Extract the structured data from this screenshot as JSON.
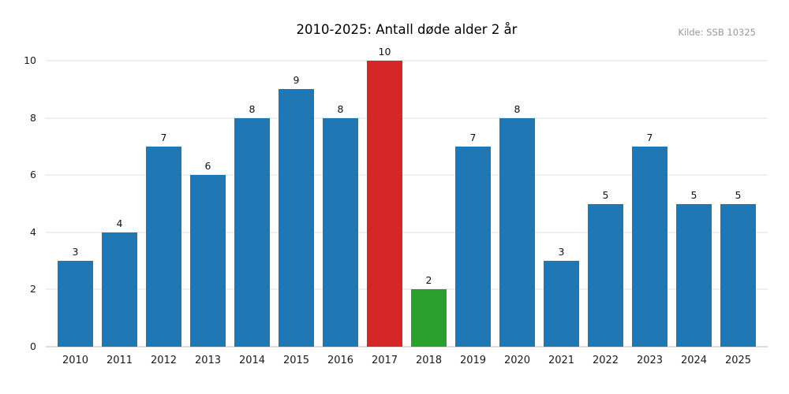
{
  "header": {
    "title": "2010-2025: Antall døde alder 2 år",
    "source": "Kilde: SSB 10325"
  },
  "colors": {
    "bar_default": "#1f77b4",
    "bar_highlight_max": "#d62728",
    "bar_highlight_min": "#2ca02c",
    "gridline": "#efefef",
    "axis_line": "#dcdcdc",
    "source_text": "#999999",
    "tick_text": "#1a1a1a",
    "background": "#ffffff"
  },
  "chart_data": {
    "type": "bar",
    "title": "2010-2025: Antall døde alder 2 år",
    "source": "Kilde: SSB 10325",
    "categories": [
      "2010",
      "2011",
      "2012",
      "2013",
      "2014",
      "2015",
      "2016",
      "2017",
      "2018",
      "2019",
      "2020",
      "2021",
      "2022",
      "2023",
      "2024",
      "2025"
    ],
    "values": [
      3,
      4,
      7,
      6,
      8,
      9,
      8,
      10,
      2,
      7,
      8,
      3,
      5,
      7,
      5,
      5
    ],
    "bar_colors": [
      "#1f77b4",
      "#1f77b4",
      "#1f77b4",
      "#1f77b4",
      "#1f77b4",
      "#1f77b4",
      "#1f77b4",
      "#d62728",
      "#2ca02c",
      "#1f77b4",
      "#1f77b4",
      "#1f77b4",
      "#1f77b4",
      "#1f77b4",
      "#1f77b4",
      "#1f77b4"
    ],
    "xlabel": "",
    "ylabel": "",
    "ylim": [
      0,
      10
    ],
    "yticks": [
      0,
      2,
      4,
      6,
      8,
      10
    ],
    "grid": "horizontal",
    "legend": "none",
    "value_labels": true
  }
}
